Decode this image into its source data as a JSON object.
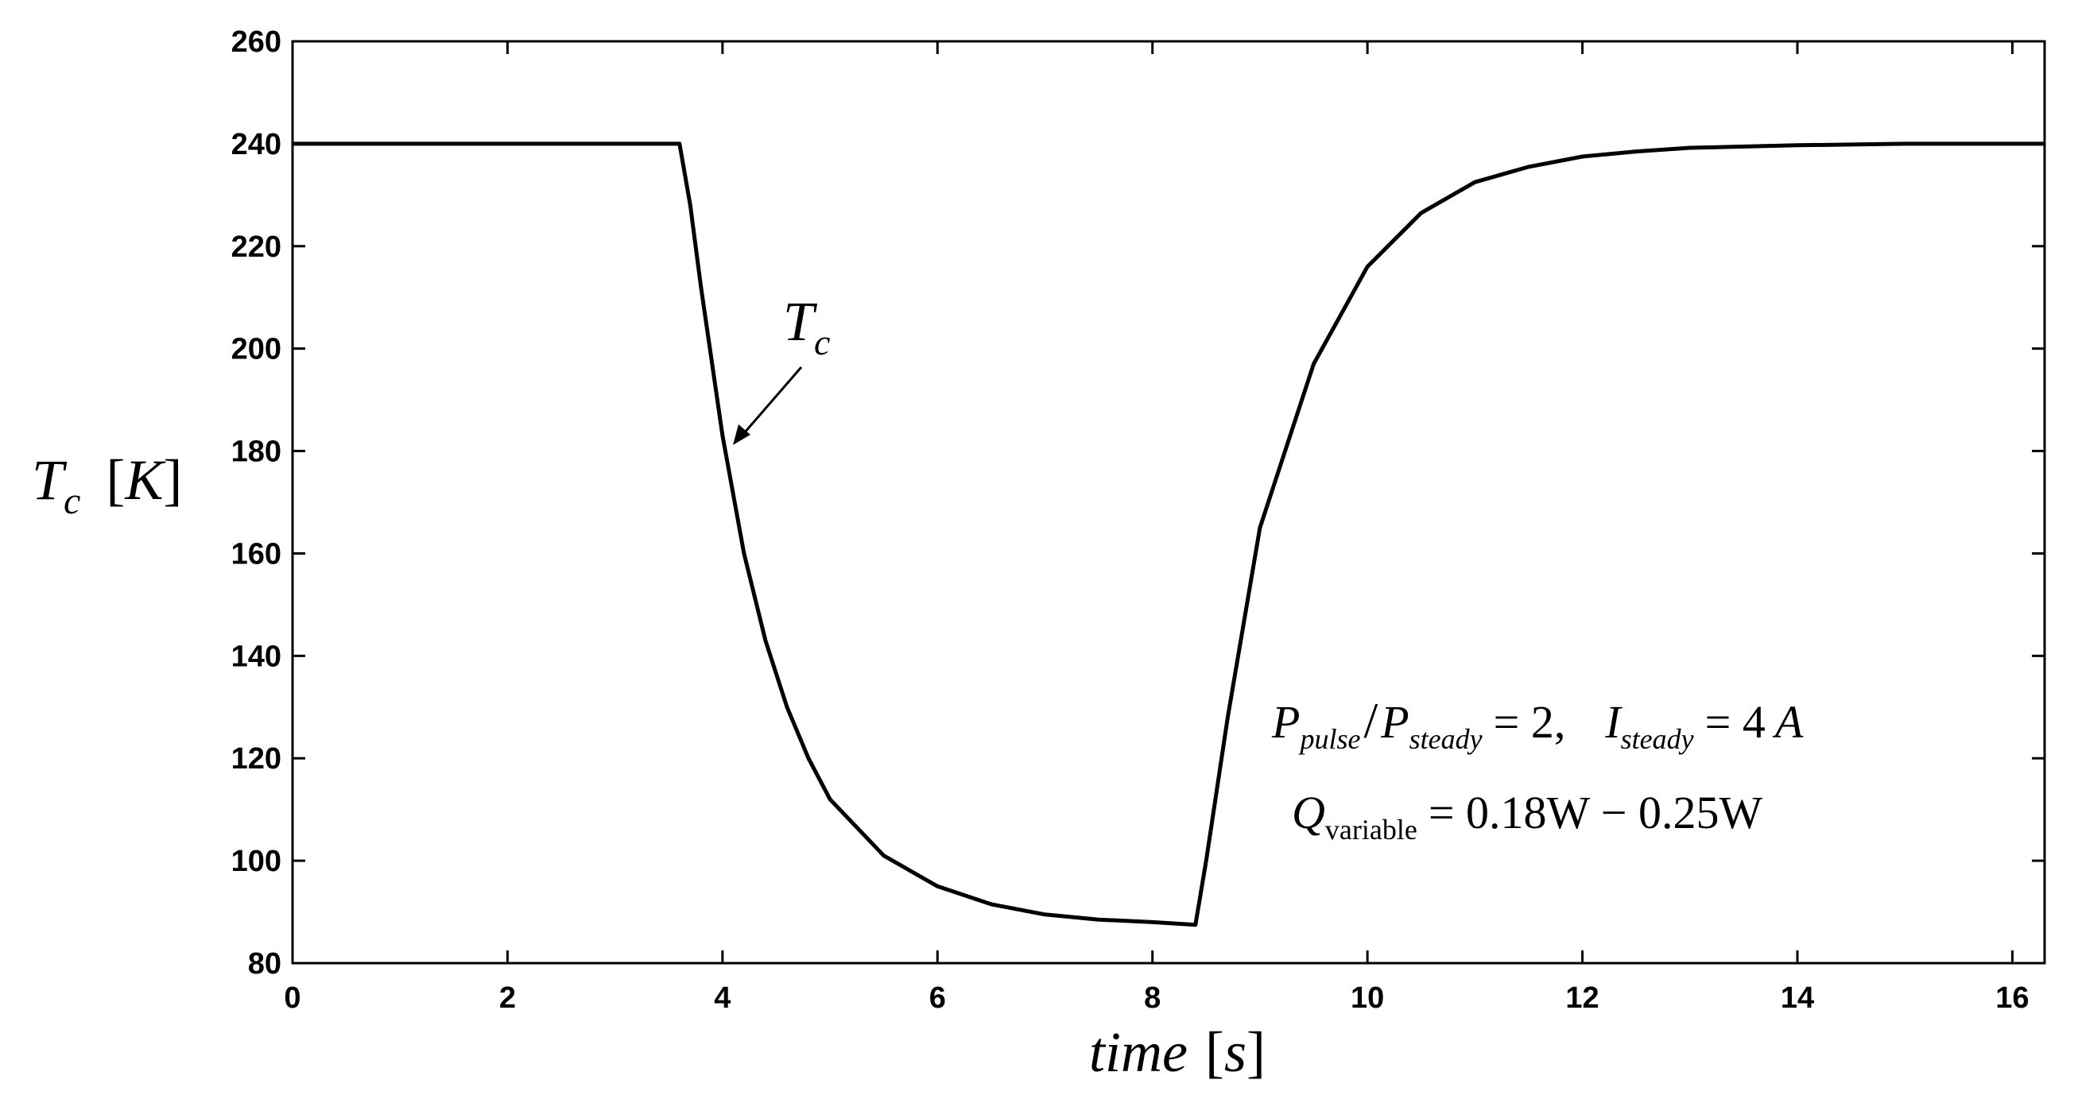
{
  "chart_data": {
    "type": "line",
    "title": "",
    "xlabel": {
      "main": "time",
      "unit": "s"
    },
    "ylabel": {
      "symbol": "T",
      "subscript": "c",
      "unit": "K"
    },
    "xlim": [
      0,
      16.3
    ],
    "ylim": [
      80,
      260
    ],
    "x_ticks": [
      "0",
      "2",
      "4",
      "6",
      "8",
      "10",
      "12",
      "14",
      "16"
    ],
    "y_ticks": [
      "80",
      "100",
      "120",
      "140",
      "160",
      "180",
      "200",
      "220",
      "240",
      "260"
    ],
    "grid": false,
    "color": "#000000",
    "series": [
      {
        "name": "T_c",
        "x": [
          0,
          3.6,
          3.7,
          3.8,
          4.0,
          4.2,
          4.4,
          4.6,
          4.8,
          5.0,
          5.5,
          6.0,
          6.5,
          7.0,
          7.5,
          8.0,
          8.4,
          8.5,
          8.7,
          9.0,
          9.5,
          10.0,
          10.5,
          11.0,
          11.5,
          12.0,
          12.5,
          13.0,
          14.0,
          15.0,
          16.3
        ],
        "y": [
          240,
          240,
          228,
          212,
          183,
          160,
          143,
          130,
          120,
          112,
          101,
          95,
          91.5,
          89.5,
          88.5,
          88,
          87.5,
          100,
          128,
          165,
          197,
          216,
          226.5,
          232.5,
          235.5,
          237.5,
          238.5,
          239.2,
          239.7,
          240,
          240
        ]
      }
    ],
    "annotations": {
      "curve_label": {
        "symbol": "T",
        "subscript": "c"
      },
      "line1": {
        "p1": "P",
        "p1_sub": "pulse",
        "slash": "/",
        "p2": "P",
        "p2_sub": "steady",
        "eq1": "= 2,",
        "i": "I",
        "i_sub": "steady",
        "eq2": "= 4",
        "unit": "A"
      },
      "line2": {
        "q": "Q",
        "q_sub": "variable",
        "rest": "= 0.18W − 0.25W"
      }
    }
  }
}
